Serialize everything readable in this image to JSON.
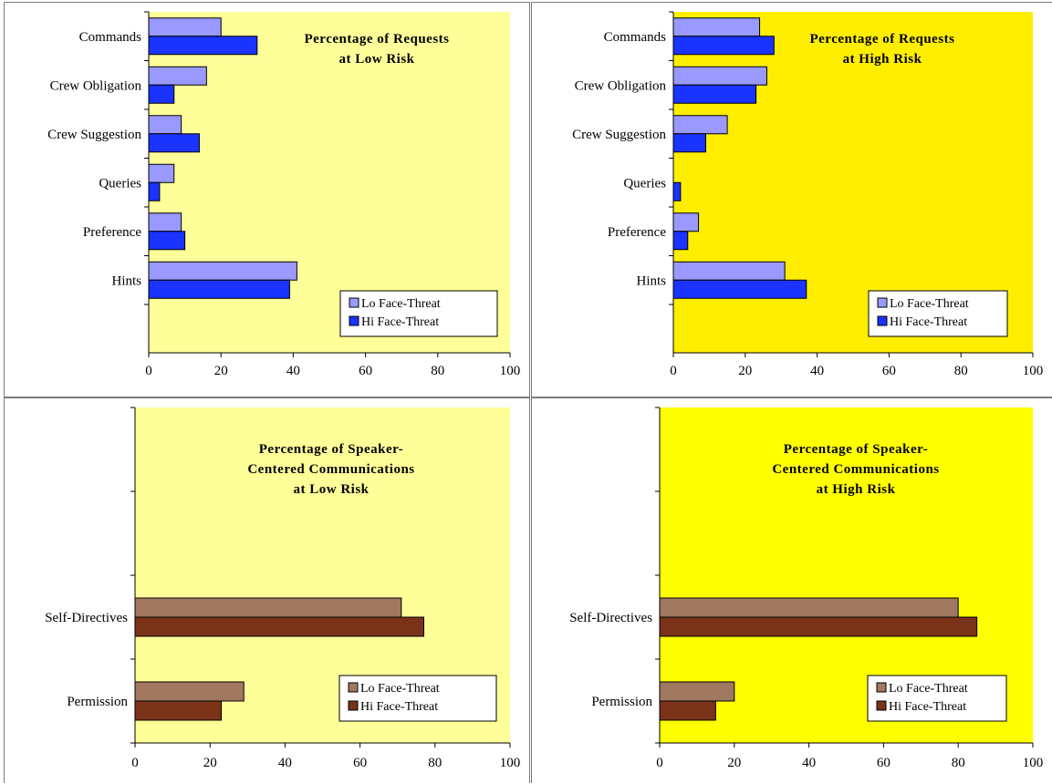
{
  "chart_data": [
    {
      "type": "bar",
      "orientation": "horizontal",
      "title": [
        "Percentage of Requests",
        "at Low Risk"
      ],
      "categories": [
        "Commands",
        "Crew Obligation",
        "Crew Suggestion",
        "Queries",
        "Preference",
        "Hints"
      ],
      "series": [
        {
          "name": "Lo Face-Threat",
          "values": [
            20,
            16,
            9,
            7,
            9,
            41
          ]
        },
        {
          "name": "Hi Face-Threat",
          "values": [
            30,
            7,
            14,
            3,
            10,
            39
          ]
        }
      ],
      "xlim": [
        0,
        100
      ],
      "xticks": [
        0,
        20,
        40,
        60,
        80,
        100
      ],
      "background": "#ffff99",
      "colors": [
        "#9999ff",
        "#1a33ff"
      ],
      "legend": "bottom-right"
    },
    {
      "type": "bar",
      "orientation": "horizontal",
      "title": [
        "Percentage of Requests",
        "at High Risk"
      ],
      "categories": [
        "Commands",
        "Crew Obligation",
        "Crew Suggestion",
        "Queries",
        "Preference",
        "Hints"
      ],
      "series": [
        {
          "name": "Lo Face-Threat",
          "values": [
            24,
            26,
            15,
            0,
            7,
            31
          ]
        },
        {
          "name": "Hi Face-Threat",
          "values": [
            28,
            23,
            9,
            2,
            4,
            37
          ]
        }
      ],
      "xlim": [
        0,
        100
      ],
      "xticks": [
        0,
        20,
        40,
        60,
        80,
        100
      ],
      "background": "#ffee00",
      "colors": [
        "#9999ff",
        "#1a33ff"
      ],
      "legend": "bottom-right"
    },
    {
      "type": "bar",
      "orientation": "horizontal",
      "title": [
        "Percentage of Speaker-",
        "Centered Communications",
        "at Low Risk"
      ],
      "categories": [
        "",
        "",
        "Self-Directives",
        "Permission"
      ],
      "series": [
        {
          "name": "Lo Face-Threat",
          "values": [
            null,
            null,
            71,
            29
          ]
        },
        {
          "name": "Hi Face-Threat",
          "values": [
            null,
            null,
            77,
            23
          ]
        }
      ],
      "xlim": [
        0,
        100
      ],
      "xticks": [
        0,
        20,
        40,
        60,
        80,
        100
      ],
      "background": "#ffff99",
      "colors": [
        "#a07860",
        "#7a3218"
      ],
      "legend": "bottom-right"
    },
    {
      "type": "bar",
      "orientation": "horizontal",
      "title": [
        "Percentage of Speaker-",
        "Centered Communications",
        "at High Risk"
      ],
      "categories": [
        "",
        "",
        "Self-Directives",
        "Permission"
      ],
      "series": [
        {
          "name": "Lo Face-Threat",
          "values": [
            null,
            null,
            80,
            20
          ]
        },
        {
          "name": "Hi Face-Threat",
          "values": [
            null,
            null,
            85,
            15
          ]
        }
      ],
      "xlim": [
        0,
        100
      ],
      "xticks": [
        0,
        20,
        40,
        60,
        80,
        100
      ],
      "background": "#ffff00",
      "colors": [
        "#a07860",
        "#7a3218"
      ],
      "legend": "bottom-right"
    }
  ]
}
